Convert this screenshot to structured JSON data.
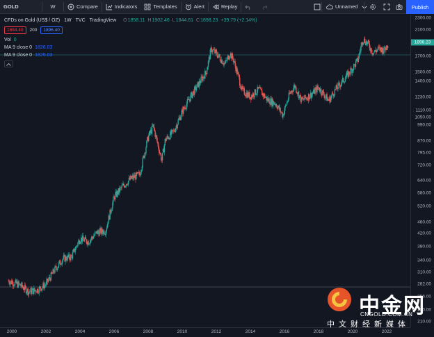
{
  "toolbar": {
    "symbol": "GOLD",
    "interval": "W",
    "compare": "Compare",
    "indicators": "Indicators",
    "templates": "Templates",
    "alert": "Alert",
    "replay": "Replay",
    "layout_name": "Unnamed",
    "publish": "Publish"
  },
  "legend": {
    "title": "CFDs on Gold (US$ / OZ)",
    "interval": "1W",
    "source": "TVC",
    "provider": "TradingView",
    "open_label": "O",
    "open": "1858.11",
    "high_label": "H",
    "high": "1902.46",
    "low_label": "L",
    "low": "1844.61",
    "close_label": "C",
    "close": "1898.23",
    "change": "+39.79 (+2.14%)",
    "bid": "1894.40",
    "spread": "200",
    "ask": "1896.40",
    "vol_label": "Vol",
    "vol_value": "0",
    "ma1_label": "MA 9 close 0",
    "ma1_value": "1826.03",
    "ma2_label": "MA 9 close 0",
    "ma2_value": "1826.03"
  },
  "last_price": "1898.23",
  "colors": {
    "up": "#26a69a",
    "down": "#ef5350",
    "background": "#131722",
    "accent": "#2962ff"
  },
  "price_axis": [
    "2300.00",
    "2100.00",
    "1900.00",
    "1700.00",
    "1500.00",
    "1400.00",
    "1230.00",
    "1110.00",
    "1050.00",
    "990.00",
    "870.00",
    "795.00",
    "720.00",
    "640.00",
    "580.00",
    "520.00",
    "460.00",
    "420.00",
    "380.00",
    "340.00",
    "310.00",
    "282.00",
    "256.00",
    "230.00",
    "210.00"
  ],
  "time_axis": [
    "2000",
    "2002",
    "2004",
    "2006",
    "2008",
    "2010",
    "2012",
    "2014",
    "2016",
    "2018",
    "2020",
    "2022"
  ],
  "watermark": {
    "brand_cn": "中金网",
    "url": "CNGOLD.COM.CN",
    "subtitle": "中文财经新媒体"
  },
  "chart_data": {
    "type": "candlestick",
    "title": "CFDs on Gold (US$ / OZ)",
    "x": [
      1999.8,
      2000.5,
      2001.0,
      2001.5,
      2002.0,
      2002.5,
      2003.0,
      2003.5,
      2004.0,
      2004.5,
      2005.0,
      2005.5,
      2006.0,
      2006.5,
      2007.0,
      2007.5,
      2008.0,
      2008.3,
      2008.8,
      2009.0,
      2009.5,
      2010.0,
      2010.5,
      2011.0,
      2011.4,
      2011.7,
      2012.0,
      2012.5,
      2012.8,
      2013.0,
      2013.3,
      2013.5,
      2014.0,
      2014.5,
      2015.0,
      2015.5,
      2015.9,
      2016.3,
      2016.6,
      2017.0,
      2017.5,
      2018.0,
      2018.6,
      2019.0,
      2019.5,
      2020.0,
      2020.3,
      2020.6,
      2020.9,
      2021.2,
      2021.5,
      2021.9,
      2022.1
    ],
    "y": [
      290,
      280,
      266,
      270,
      282,
      315,
      345,
      350,
      405,
      395,
      425,
      430,
      560,
      610,
      650,
      670,
      900,
      980,
      750,
      880,
      940,
      1100,
      1240,
      1380,
      1500,
      1800,
      1740,
      1600,
      1740,
      1660,
      1450,
      1300,
      1240,
      1310,
      1210,
      1170,
      1070,
      1260,
      1350,
      1200,
      1250,
      1330,
      1200,
      1310,
      1420,
      1550,
      1650,
      1950,
      1880,
      1750,
      1800,
      1790,
      1898
    ]
  }
}
